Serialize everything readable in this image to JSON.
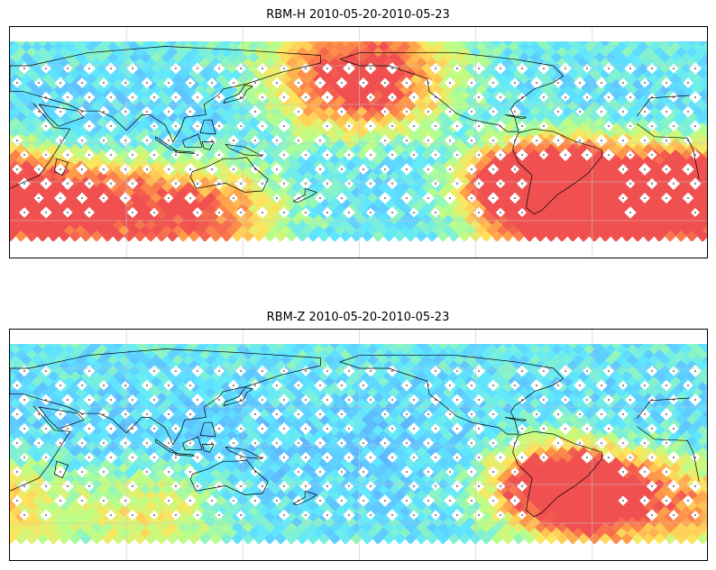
{
  "figure": {
    "panels": [
      {
        "id": "rbm-h",
        "title": "RBM-H 2010-05-20-2010-05-23",
        "hot_zones": [
          {
            "lon": 10,
            "lat": -40,
            "intensity": 0.95,
            "radius": 35
          },
          {
            "lon": 60,
            "lat": -50,
            "intensity": 0.75,
            "radius": 40
          },
          {
            "lon": 120,
            "lat": -55,
            "intensity": 0.6,
            "radius": 40
          },
          {
            "lon": 200,
            "lat": 50,
            "intensity": 0.85,
            "radius": 45
          },
          {
            "lon": 300,
            "lat": -40,
            "intensity": 1.0,
            "radius": 40
          },
          {
            "lon": 330,
            "lat": -45,
            "intensity": 0.95,
            "radius": 40
          },
          {
            "lon": 280,
            "lat": -30,
            "intensity": 0.7,
            "radius": 25
          }
        ]
      },
      {
        "id": "rbm-z",
        "title": "RBM-Z 2010-05-20-2010-05-23",
        "hot_zones": [
          {
            "lon": 300,
            "lat": -30,
            "intensity": 0.8,
            "radius": 35
          },
          {
            "lon": 325,
            "lat": -40,
            "intensity": 0.65,
            "radius": 35
          },
          {
            "lon": 10,
            "lat": -45,
            "intensity": 0.4,
            "radius": 40
          },
          {
            "lon": 90,
            "lat": -55,
            "intensity": 0.3,
            "radius": 40
          }
        ]
      }
    ],
    "colormap": [
      "#6a5cff",
      "#5fa9ff",
      "#5fe8ff",
      "#b8ff8a",
      "#ffe45c",
      "#ff9a4a",
      "#f05050"
    ],
    "coastline_color": "#000000",
    "grid_color": "#c8c8c8",
    "marker_color": "#ffffff"
  }
}
